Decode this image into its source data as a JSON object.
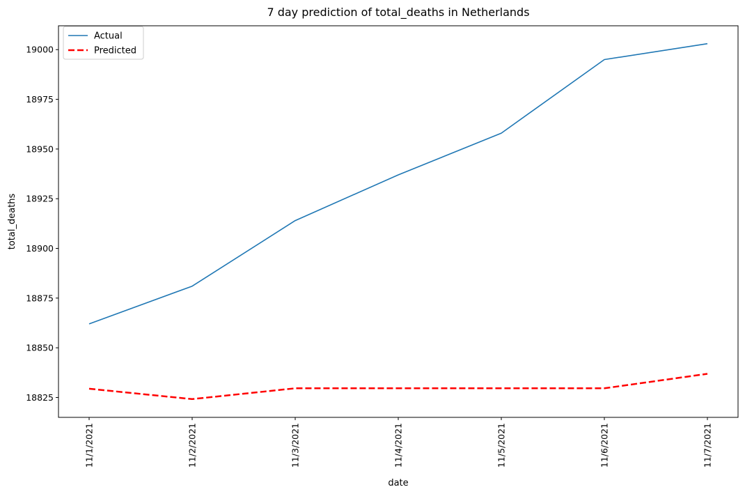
{
  "chart_data": {
    "type": "line",
    "title": "7 day prediction of total_deaths in Netherlands",
    "xlabel": "date",
    "ylabel": "total_deaths",
    "categories": [
      "11/1/2021",
      "11/2/2021",
      "11/3/2021",
      "11/4/2021",
      "11/5/2021",
      "11/6/2021",
      "11/7/2021"
    ],
    "ylim": [
      18815,
      19012
    ],
    "yticks": [
      18825,
      18850,
      18875,
      18900,
      18925,
      18950,
      18975,
      19000
    ],
    "grid": false,
    "legend_position": "top-left",
    "series": [
      {
        "name": "Actual",
        "values": [
          18862,
          18881,
          18914,
          18937,
          18958,
          18995,
          19003
        ],
        "color": "#1f77b4",
        "style": "solid"
      },
      {
        "name": "Predicted",
        "values": [
          18829.4,
          18824.2,
          18829.6,
          18829.6,
          18829.6,
          18829.6,
          18836.9
        ],
        "color": "#ff0000",
        "style": "dashed"
      }
    ]
  }
}
